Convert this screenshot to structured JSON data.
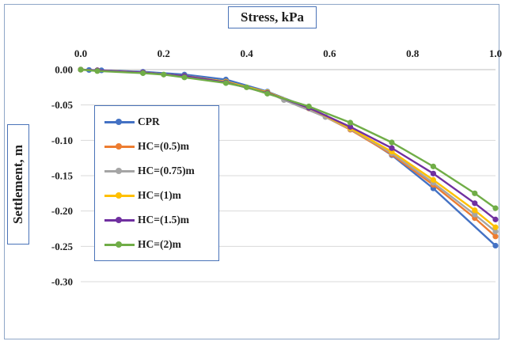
{
  "chart_data": {
    "type": "line",
    "title": "Stress, kPa",
    "ylabel": "Settlement, m",
    "xlim": [
      0,
      1.0
    ],
    "ylim": [
      -0.3,
      0.0
    ],
    "x_ticks": [
      "0.0",
      "0.2",
      "0.4",
      "0.6",
      "0.8",
      "1.0"
    ],
    "x_tick_values": [
      0,
      0.2,
      0.4,
      0.6,
      0.8,
      1.0
    ],
    "y_ticks": [
      "0.00",
      "-0.05",
      "-0.10",
      "-0.15",
      "-0.20",
      "-0.25",
      "-0.30"
    ],
    "y_tick_values": [
      0,
      -0.05,
      -0.1,
      -0.15,
      -0.2,
      -0.25,
      -0.3
    ],
    "x_axis_position": "top",
    "grid": "horizontal",
    "legend_position": "left",
    "series": [
      {
        "name": "CPR",
        "color": "#4472c4",
        "x": [
          0,
          0.02,
          0.05,
          0.15,
          0.25,
          0.35,
          0.45,
          0.55,
          0.65,
          0.75,
          0.85,
          1.0
        ],
        "y": [
          0,
          -0.0005,
          -0.001,
          -0.003,
          -0.007,
          -0.014,
          -0.031,
          -0.054,
          -0.083,
          -0.121,
          -0.168,
          -0.249
        ]
      },
      {
        "name": "HC=(0.5)m",
        "color": "#ed7d31",
        "x": [
          0,
          0.04,
          0.15,
          0.25,
          0.35,
          0.45,
          0.55,
          0.65,
          0.75,
          0.85,
          0.95,
          1.0
        ],
        "y": [
          0,
          -0.001,
          -0.004,
          -0.009,
          -0.017,
          -0.032,
          -0.055,
          -0.085,
          -0.12,
          -0.163,
          -0.21,
          -0.236
        ]
      },
      {
        "name": "HC=(0.75)m",
        "color": "#a5a5a5",
        "x": [
          0,
          0.04,
          0.15,
          0.25,
          0.35,
          0.45,
          0.49,
          0.59,
          0.65,
          0.75,
          0.85,
          0.95,
          1.0
        ],
        "y": [
          0,
          -0.001,
          -0.004,
          -0.009,
          -0.017,
          -0.032,
          -0.043,
          -0.067,
          -0.084,
          -0.118,
          -0.16,
          -0.205,
          -0.229
        ]
      },
      {
        "name": "HC=(1)m",
        "color": "#ffc000",
        "x": [
          0,
          0.04,
          0.15,
          0.25,
          0.35,
          0.45,
          0.55,
          0.65,
          0.75,
          0.85,
          0.95,
          1.0
        ],
        "y": [
          0,
          -0.001,
          -0.004,
          -0.009,
          -0.017,
          -0.032,
          -0.054,
          -0.083,
          -0.116,
          -0.156,
          -0.199,
          -0.223
        ]
      },
      {
        "name": "HC=(1.5)m",
        "color": "#7030a0",
        "x": [
          0,
          0.04,
          0.15,
          0.25,
          0.35,
          0.45,
          0.55,
          0.65,
          0.75,
          0.85,
          0.95,
          1.0
        ],
        "y": [
          0,
          -0.001,
          -0.004,
          -0.009,
          -0.018,
          -0.033,
          -0.054,
          -0.081,
          -0.111,
          -0.147,
          -0.189,
          -0.212
        ]
      },
      {
        "name": "HC=(2)m",
        "color": "#70ad47",
        "x": [
          0,
          0.04,
          0.15,
          0.2,
          0.25,
          0.35,
          0.4,
          0.45,
          0.55,
          0.65,
          0.75,
          0.85,
          0.95,
          1.0
        ],
        "y": [
          0,
          -0.002,
          -0.005,
          -0.007,
          -0.011,
          -0.019,
          -0.025,
          -0.034,
          -0.052,
          -0.075,
          -0.103,
          -0.137,
          -0.175,
          -0.196
        ]
      }
    ]
  }
}
